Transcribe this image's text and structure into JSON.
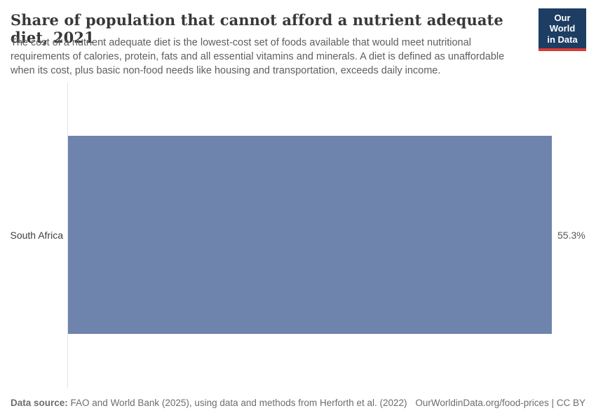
{
  "header": {
    "title": "Share of population that cannot afford a nutrient adequate diet, 2021",
    "subtitle": "The cost of a nutrient adequate diet is the lowest-cost set of foods available that would meet nutritional requirements of calories, protein, fats and all essential vitamins and minerals. A diet is defined as unaffordable when its cost, plus basic non-food needs like housing and transportation, exceeds daily income.",
    "logo": {
      "line1": "Our World",
      "line2": "in Data",
      "background_color": "#1d3d63",
      "accent_color": "#d93a34"
    }
  },
  "chart_data": {
    "type": "bar",
    "orientation": "horizontal",
    "title": "Share of population that cannot afford a nutrient adequate diet, 2021",
    "categories": [
      "South Africa"
    ],
    "values": [
      55.3
    ],
    "value_labels": [
      "55.3%"
    ],
    "unit": "%",
    "xlim": [
      0,
      55.3
    ],
    "bar_color": "#6e84ac",
    "axis_line_color": "#e4e4e4",
    "grid": false,
    "legend": false
  },
  "footer": {
    "datasource_label": "Data source:",
    "datasource_text": " FAO and World Bank (2025), using data and methods from Herforth et al. (2022)",
    "origin_text": "OurWorldinData.org/food-prices | CC BY"
  }
}
